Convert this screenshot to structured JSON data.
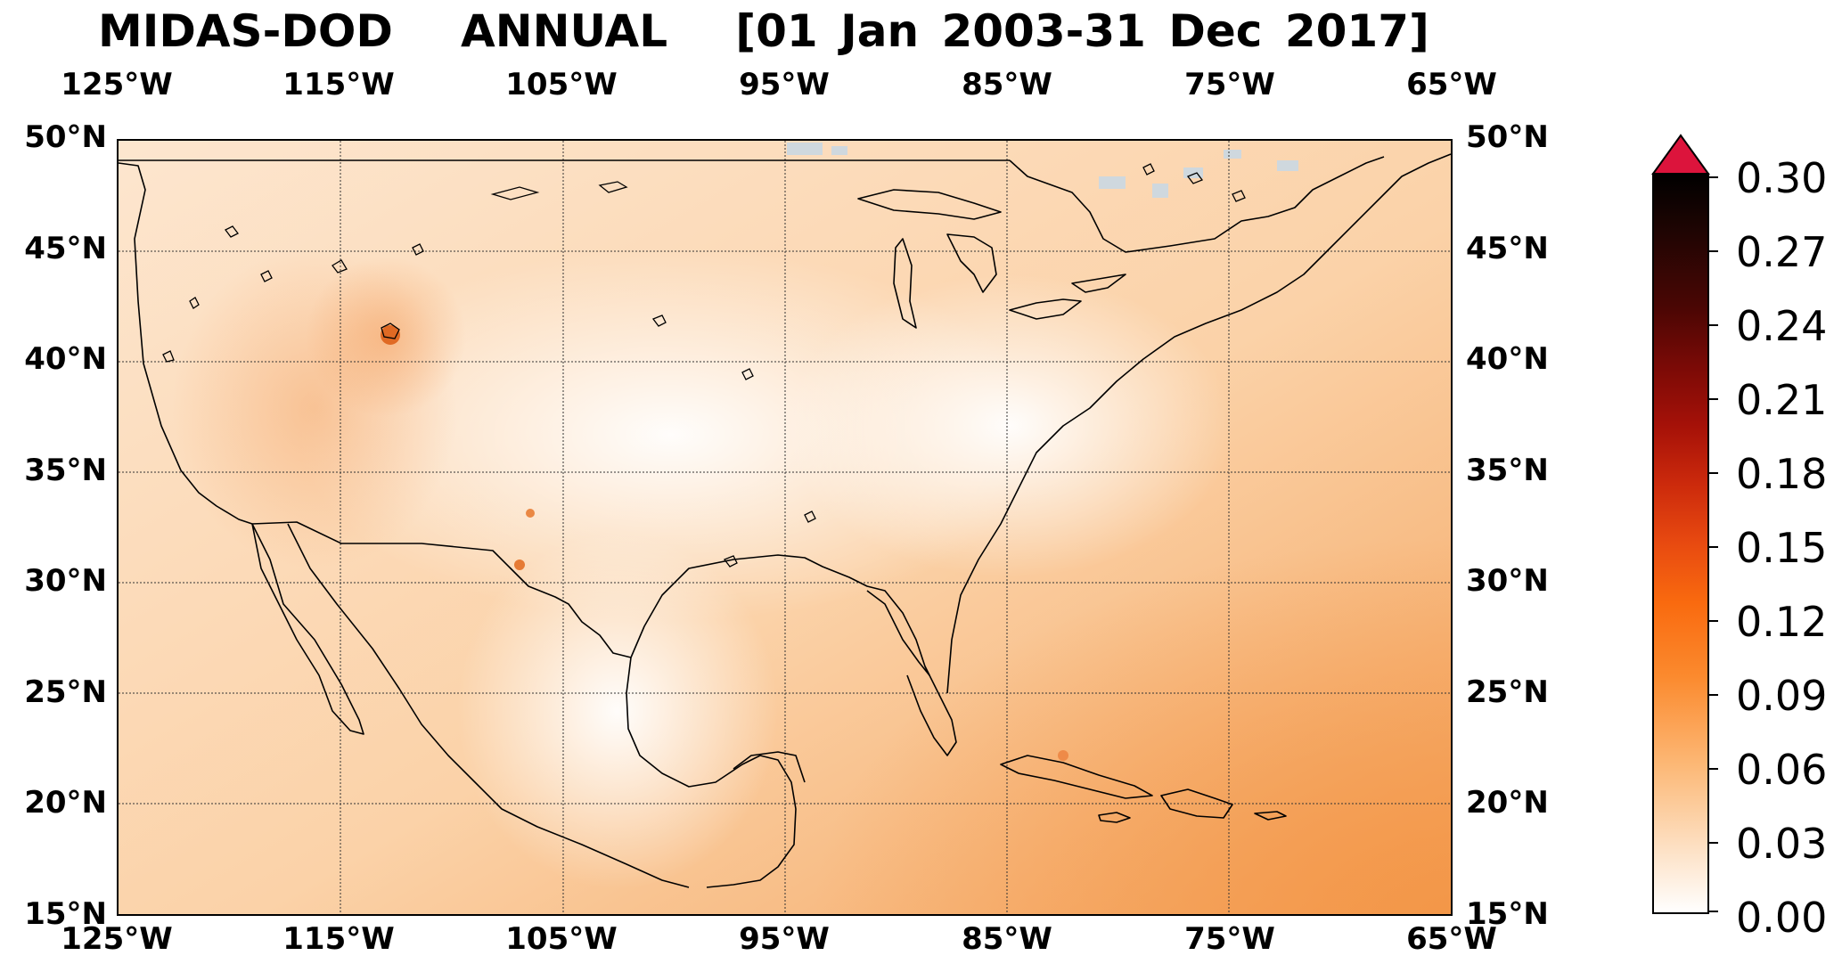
{
  "title": "MIDAS-DOD   ANNUAL   [01 Jan 2003-31 Dec 2017]",
  "map": {
    "extent": {
      "lon_min": -125,
      "lon_max": -65,
      "lat_min": 15,
      "lat_max": 50
    },
    "grid": true,
    "lon_labels": [
      "125°W",
      "115°W",
      "105°W",
      "95°W",
      "85°W",
      "75°W",
      "65°W"
    ],
    "lat_labels": [
      "50°N",
      "45°N",
      "40°N",
      "35°N",
      "30°N",
      "25°N",
      "20°N",
      "15°N"
    ],
    "colors": {
      "low": "#ffffff",
      "background": "#fbe0c6",
      "ocean_southeast": "#f7b57a",
      "hotspot": "#e87b36",
      "missing": "#cfd8de",
      "coastline": "#000000"
    }
  },
  "colorbar": {
    "ticks": [
      "0.30",
      "0.27",
      "0.24",
      "0.21",
      "0.18",
      "0.15",
      "0.12",
      "0.09",
      "0.06",
      "0.03",
      "0.00"
    ],
    "min": 0.0,
    "max": 0.3,
    "extend": "max",
    "extend_color": "#dc143c",
    "colors": [
      "#ffffff",
      "#fde3c9",
      "#fcb876",
      "#fb8a2e",
      "#f96a0f",
      "#e84a10",
      "#cc2a0c",
      "#a51108",
      "#7a0a06",
      "#4a0604",
      "#200503",
      "#000000"
    ]
  }
}
